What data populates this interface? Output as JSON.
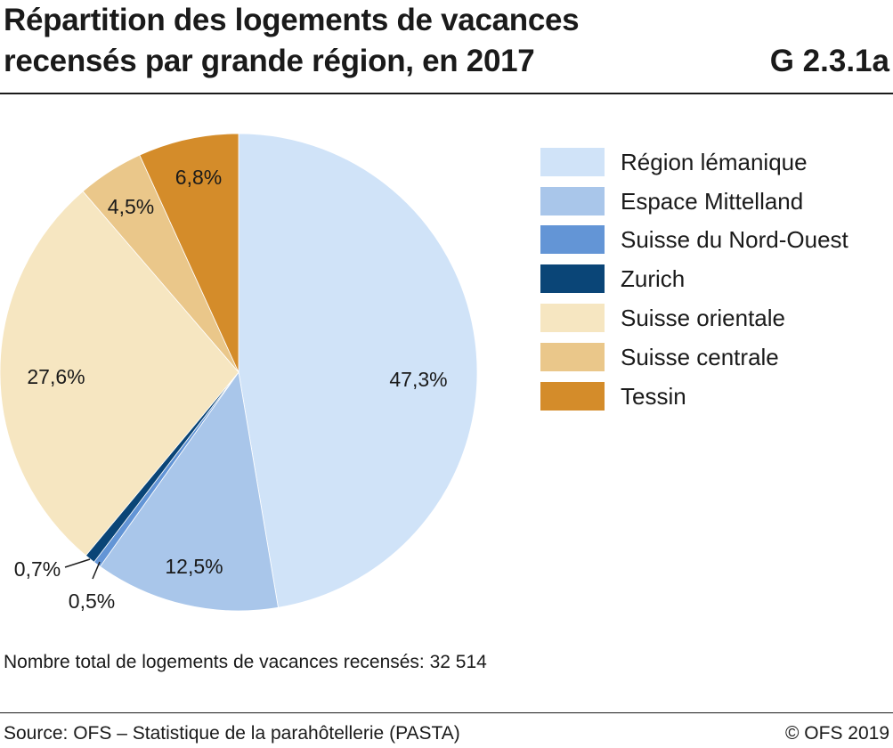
{
  "title_line1": "Répartition des logements de vacances",
  "title_line2": "recensés par grande région, en 2017",
  "chart_id": "G 2.3.1a",
  "note": "Nombre total de logements de vacances recensés: 32 514",
  "source": "Source: OFS – Statistique de la parahôtellerie (PASTA)",
  "copyright": "© OFS 2019",
  "chart_data": {
    "type": "pie",
    "title": "Répartition des logements de vacances recensés par grande région, en 2017",
    "legend_position": "right",
    "slices": [
      {
        "name": "Région lémanique",
        "value": 47.3,
        "label": "47,3%",
        "color": "#d0e3f8"
      },
      {
        "name": "Espace Mittelland",
        "value": 12.5,
        "label": "12,5%",
        "color": "#a9c6ea"
      },
      {
        "name": "Suisse du Nord-Ouest",
        "value": 0.5,
        "label": "0,5%",
        "color": "#6395d6"
      },
      {
        "name": "Zurich",
        "value": 0.7,
        "label": "0,7%",
        "color": "#0a4577"
      },
      {
        "name": "Suisse orientale",
        "value": 27.6,
        "label": "27,6%",
        "color": "#f6e6c1"
      },
      {
        "name": "Suisse centrale",
        "value": 4.5,
        "label": "4,5%",
        "color": "#eac78a"
      },
      {
        "name": "Tessin",
        "value": 6.8,
        "label": "6,8%",
        "color": "#d48c2a"
      }
    ]
  }
}
